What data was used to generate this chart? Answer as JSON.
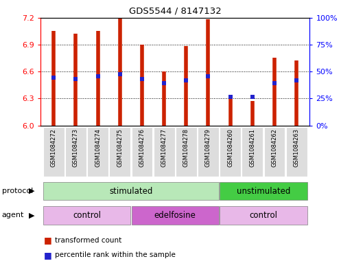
{
  "title": "GDS5544 / 8147132",
  "samples": [
    "GSM1084272",
    "GSM1084273",
    "GSM1084274",
    "GSM1084275",
    "GSM1084276",
    "GSM1084277",
    "GSM1084278",
    "GSM1084279",
    "GSM1084260",
    "GSM1084261",
    "GSM1084262",
    "GSM1084263"
  ],
  "bar_tops": [
    7.05,
    7.02,
    7.05,
    7.2,
    6.9,
    6.6,
    6.88,
    7.18,
    6.3,
    6.27,
    6.75,
    6.72
  ],
  "bar_bottom": 6.0,
  "blue_dots_y": [
    6.53,
    6.52,
    6.55,
    6.57,
    6.52,
    6.47,
    6.5,
    6.55,
    6.32,
    6.32,
    6.47,
    6.5
  ],
  "ylim": [
    6.0,
    7.2
  ],
  "yticks_left": [
    6.0,
    6.3,
    6.6,
    6.9,
    7.2
  ],
  "yticks_right_pct": [
    0,
    25,
    50,
    75,
    100
  ],
  "bar_color": "#cc2200",
  "dot_color": "#2222cc",
  "background_color": "#ffffff",
  "protocol_groups": [
    {
      "label": "stimulated",
      "start": 0,
      "end": 8,
      "color": "#b8e8b8"
    },
    {
      "label": "unstimulated",
      "start": 8,
      "end": 12,
      "color": "#44cc44"
    }
  ],
  "agent_groups": [
    {
      "label": "control",
      "start": 0,
      "end": 4,
      "color": "#e8b8e8"
    },
    {
      "label": "edelfosine",
      "start": 4,
      "end": 8,
      "color": "#cc66cc"
    },
    {
      "label": "control",
      "start": 8,
      "end": 12,
      "color": "#e8b8e8"
    }
  ],
  "protocol_label": "protocol",
  "agent_label": "agent",
  "legend_items": [
    "transformed count",
    "percentile rank within the sample"
  ],
  "bar_linewidth": 4.0,
  "dot_size": 18,
  "label_bg_color": "#dddddd"
}
